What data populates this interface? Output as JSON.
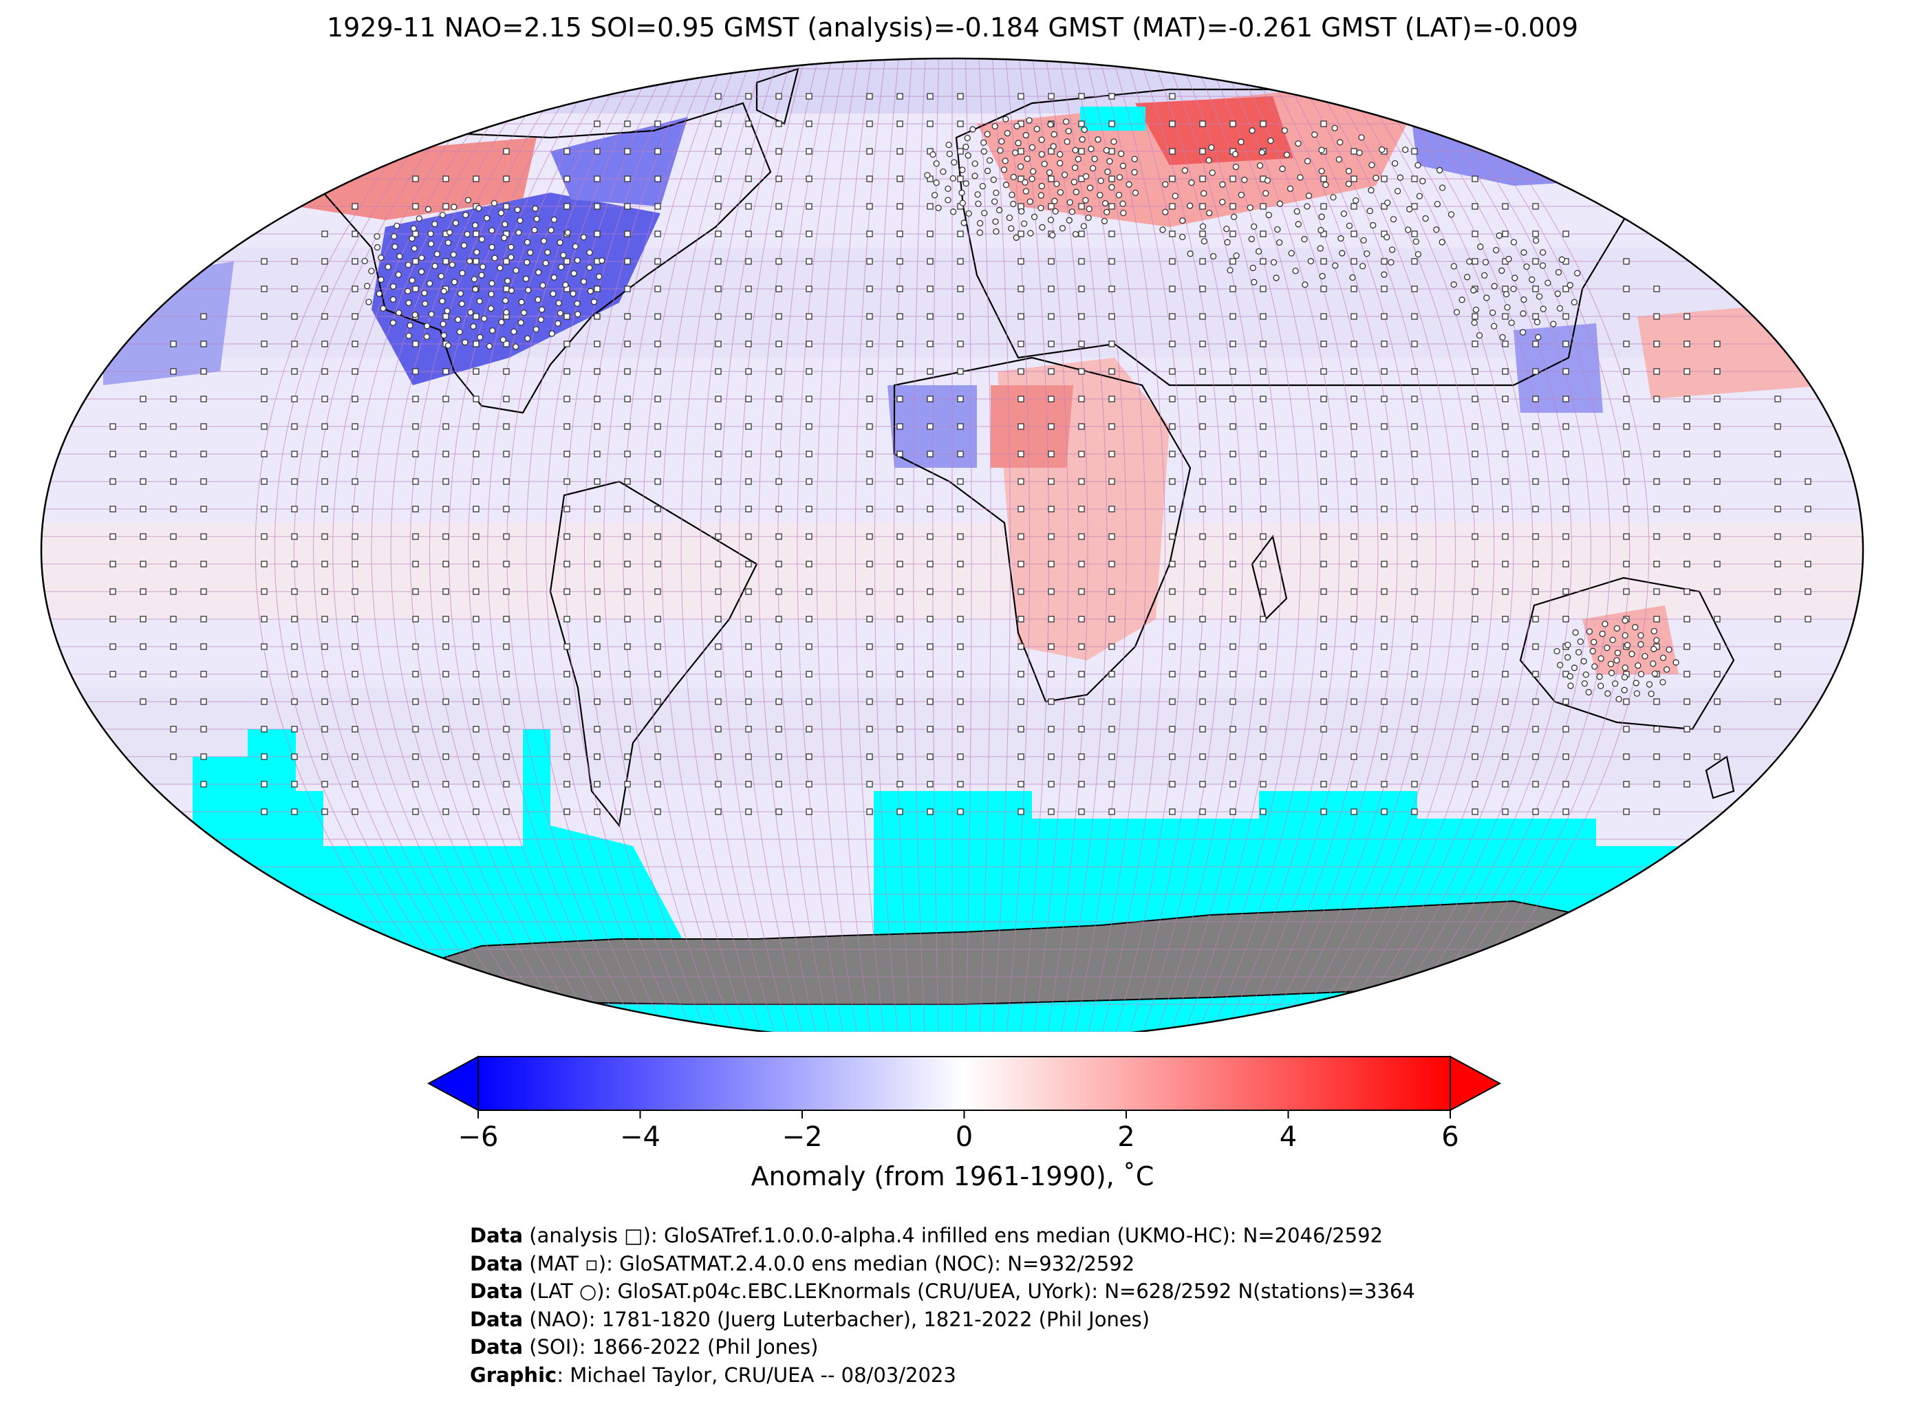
{
  "title": "1929-11 NAO=2.15 SOI=0.95 GMST (analysis)=-0.184 GMST (MAT)=-0.261 GMST (LAT)=-0.009",
  "colorbar": {
    "label": "Anomaly (from 1961-1990), ˚C",
    "ticks": [
      "−6",
      "−4",
      "−2",
      "0",
      "2",
      "4",
      "6"
    ],
    "min": -6,
    "max": 6,
    "colors": {
      "low": "#0000ff",
      "mid": "#ffffff",
      "high": "#ff0000"
    },
    "extend": "both"
  },
  "map": {
    "projection": "Robinson",
    "missing_color": "#00ffff",
    "land_mask_color": "#808080",
    "grid_color": "#c080c0"
  },
  "credits": [
    {
      "bold": "Data",
      "text": " (analysis □): GloSATref.1.0.0.0-alpha.4 infilled ens median (UKMO-HC): N=2046/2592"
    },
    {
      "bold": "Data",
      "text": " (MAT ▫): GloSATMAT.2.4.0.0 ens median (NOC): N=932/2592"
    },
    {
      "bold": "Data",
      "text": " (LAT ○): GloSAT.p04c.EBC.LEKnormals (CRU/UEA, UYork): N=628/2592 N(stations)=3364"
    },
    {
      "bold": "Data",
      "text": " (NAO): 1781-1820 (Juerg Luterbacher), 1821-2022 (Phil Jones)"
    },
    {
      "bold": "Data",
      "text": " (SOI): 1866-2022 (Phil Jones)"
    },
    {
      "bold": "Graphic",
      "text": ": Michael Taylor, CRU/UEA -- 08/03/2023"
    }
  ]
}
